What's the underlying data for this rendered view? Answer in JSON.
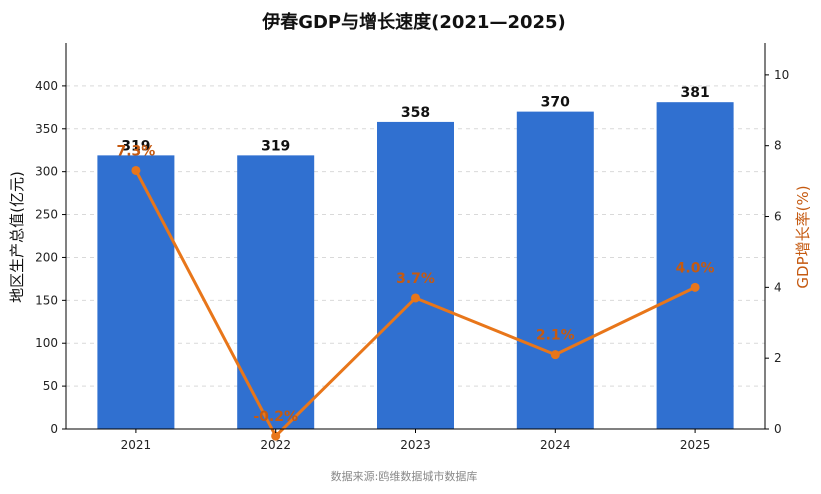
{
  "chart_data": {
    "type": "bar",
    "title": "伊春GDP与增长速度(2021—2025)",
    "categories": [
      "2021",
      "2022",
      "2023",
      "2024",
      "2025"
    ],
    "series": [
      {
        "name": "",
        "type": "bar",
        "axis": "left",
        "color": "#3070d0",
        "values": [
          319,
          319,
          358,
          370,
          381
        ],
        "labels": [
          "319",
          "319",
          "358",
          "370",
          "381"
        ]
      },
      {
        "name": "",
        "type": "line",
        "axis": "right",
        "color": "#e8761a",
        "values": [
          7.3,
          -0.2,
          3.7,
          2.1,
          4.0
        ],
        "labels": [
          "7.3%",
          "-0.2%",
          "3.7%",
          "2.1%",
          "4.0%"
        ]
      }
    ],
    "ylabel": "地区生产总值(亿元)",
    "y2label": "GDP增长率(%)",
    "ylim": [
      0,
      450
    ],
    "y2lim": [
      0,
      10.9
    ],
    "yticks": [
      0,
      50,
      100,
      150,
      200,
      250,
      300,
      350,
      400
    ],
    "y2ticks": [
      0,
      2,
      4,
      6,
      8,
      10
    ],
    "grid": true,
    "source": "数据来源:鸥维数据城市数据库"
  }
}
